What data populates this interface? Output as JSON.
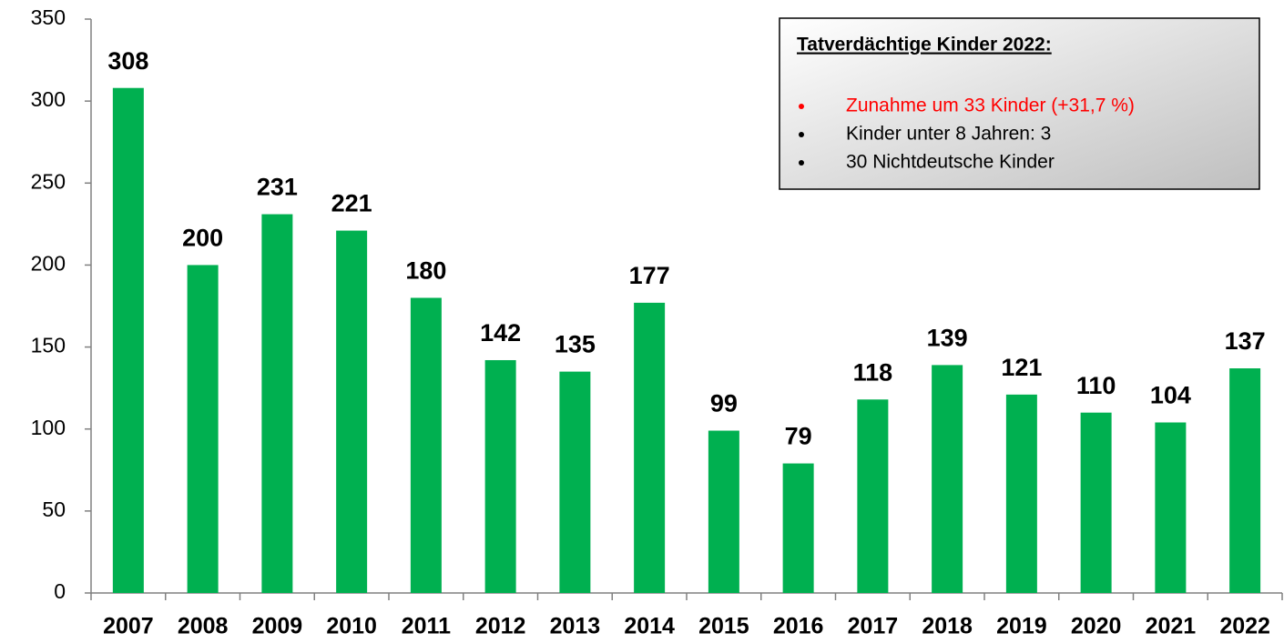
{
  "chart_data": {
    "type": "bar",
    "categories": [
      "2007",
      "2008",
      "2009",
      "2010",
      "2011",
      "2012",
      "2013",
      "2014",
      "2015",
      "2016",
      "2017",
      "2018",
      "2019",
      "2020",
      "2021",
      "2022"
    ],
    "values": [
      308,
      200,
      231,
      221,
      180,
      142,
      135,
      177,
      99,
      79,
      118,
      139,
      121,
      110,
      104,
      137
    ],
    "color": "#00b050",
    "ylim": [
      0,
      350
    ],
    "yticks": [
      0,
      50,
      100,
      150,
      200,
      250,
      300,
      350
    ],
    "grid": false,
    "annotation": {
      "title": "Tatverdächtige Kinder 2022:",
      "items": [
        {
          "text": "Zunahme um 33 Kinder (+31,7 %)",
          "color": "#ff0000"
        },
        {
          "text": "Kinder unter 8 Jahren: 3",
          "color": "#000000"
        },
        {
          "text": "30 Nichtdeutsche Kinder",
          "color": "#000000"
        }
      ]
    }
  }
}
